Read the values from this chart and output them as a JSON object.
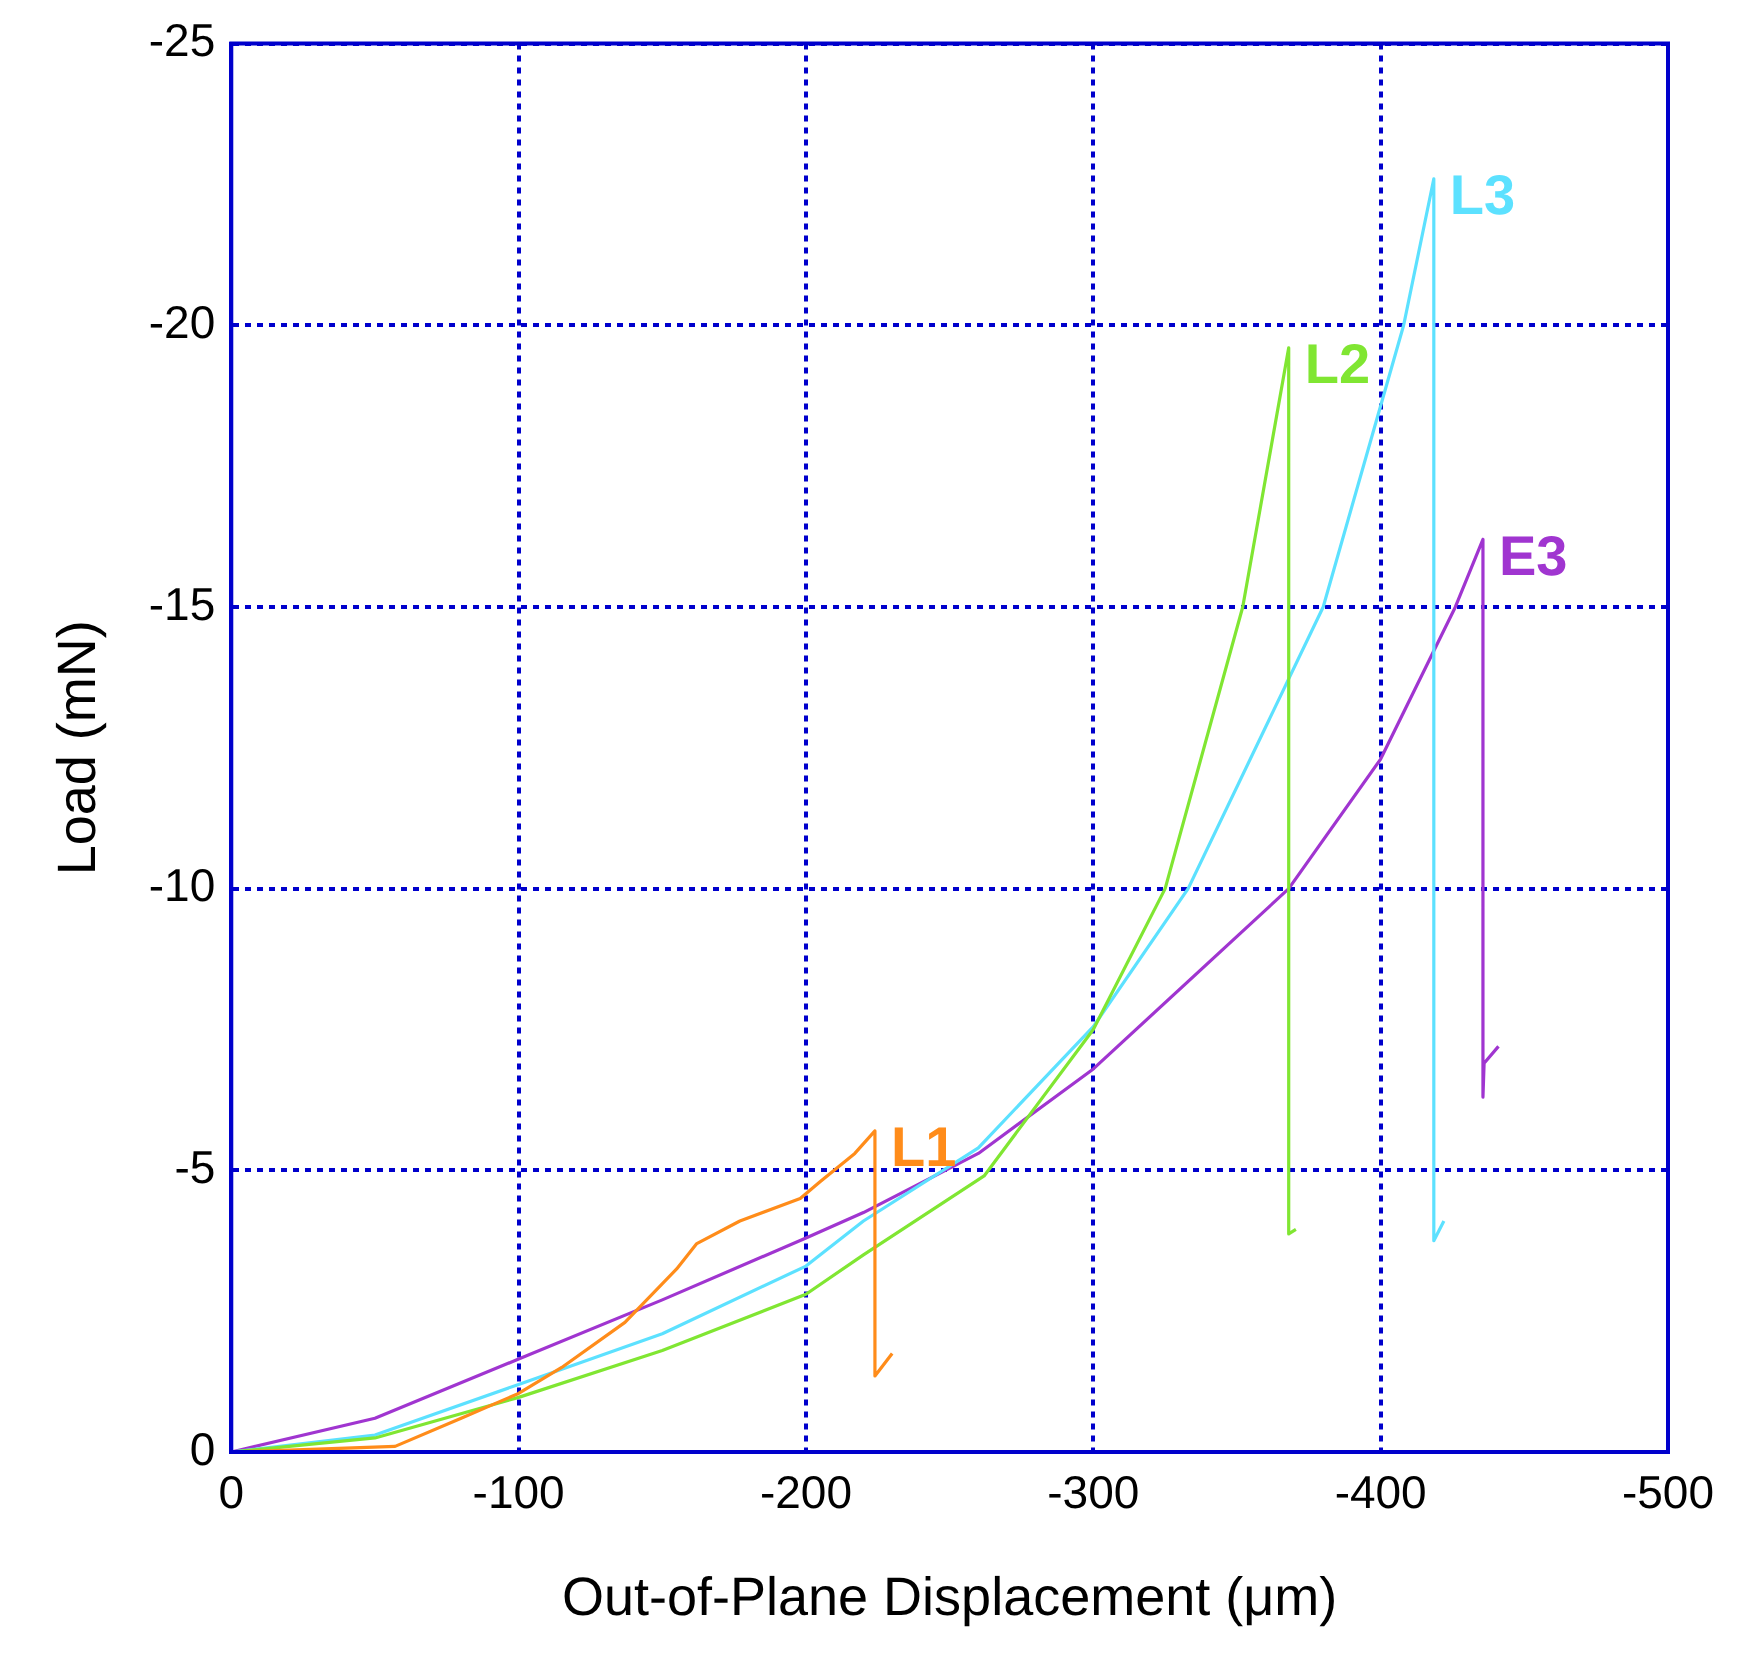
{
  "chart_data": {
    "type": "line",
    "xlabel": "Out-of-Plane Displacement (μm)",
    "ylabel": "Load (mN)",
    "xlim": [
      0,
      -500
    ],
    "xticks": [
      0,
      -100,
      -200,
      -300,
      -400,
      -500
    ],
    "ylim": [
      0,
      -25
    ],
    "yticks": [
      0,
      -5,
      -10,
      -15,
      -20,
      -25
    ],
    "grid": true,
    "legend": false,
    "marker": "none",
    "line_style": "solid",
    "series": [
      {
        "name": "L1",
        "color": "#ff8c1a",
        "x": [
          0,
          -30,
          -57,
          -80,
          -100,
          -115,
          -137,
          -155,
          -162,
          -177,
          -198,
          -205,
          -217,
          -224,
          -224,
          -230
        ],
        "values": [
          0,
          -0.05,
          -0.1,
          -0.6,
          -1.04,
          -1.5,
          -2.3,
          -3.25,
          -3.7,
          -4.1,
          -4.5,
          -4.8,
          -5.3,
          -5.7,
          -1.35,
          -1.75
        ]
      },
      {
        "name": "L2",
        "color": "#80e632",
        "x": [
          0,
          -50,
          -100,
          -150,
          -200,
          -220,
          -262,
          -300,
          -325,
          -352,
          -368,
          -368,
          -370.5
        ],
        "values": [
          0,
          -0.25,
          -0.97,
          -1.8,
          -2.8,
          -3.5,
          -4.9,
          -7.5,
          -10,
          -15,
          -19.6,
          -3.87,
          -3.95
        ]
      },
      {
        "name": "L3",
        "color": "#5ce1ff",
        "x": [
          0,
          -50,
          -100,
          -150,
          -200,
          -220,
          -260,
          -300,
          -333,
          -380,
          -408,
          -418.5,
          -418.5,
          -422
        ],
        "values": [
          0,
          -0.3,
          -1.2,
          -2.1,
          -3.3,
          -4.1,
          -5.4,
          -7.55,
          -10,
          -15,
          -20,
          -22.6,
          -3.75,
          -4.1
        ]
      },
      {
        "name": "E3",
        "color": "#a035d0",
        "x": [
          0,
          -50,
          -100,
          -150,
          -200,
          -220,
          -260,
          -300,
          -368,
          -400,
          -426,
          -435.6,
          -435.6,
          -436,
          -441
        ],
        "values": [
          0,
          -0.6,
          -1.65,
          -2.7,
          -3.8,
          -4.25,
          -5.3,
          -6.8,
          -10,
          -12.3,
          -15,
          -16.2,
          -6.3,
          -6.9,
          -7.2
        ]
      }
    ]
  }
}
